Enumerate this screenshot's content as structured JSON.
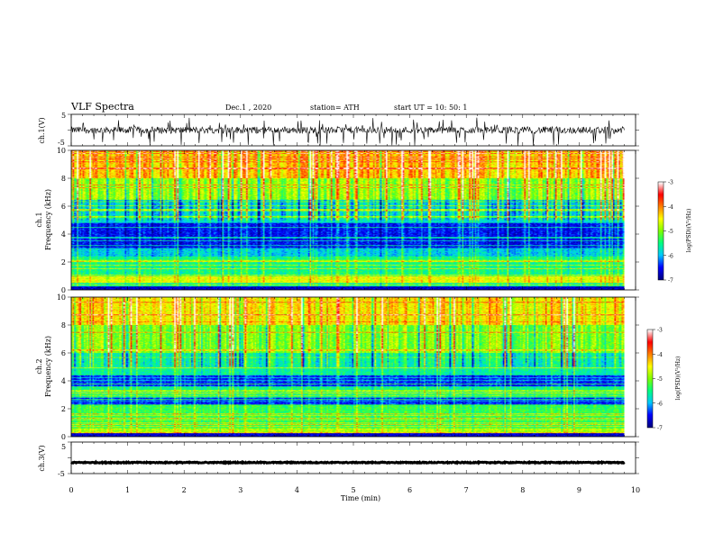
{
  "header": {
    "title": "VLF Spectra",
    "date": "Dec.1 , 2020",
    "station": "station= ATH",
    "start": "start UT = 10: 50: 1"
  },
  "chart_data": [
    {
      "type": "line",
      "name": "ch.1 waveform",
      "ylabel": "ch.1(V)",
      "ylim": [
        -5,
        5
      ],
      "yticks": [
        "5",
        "-5"
      ],
      "xlim": [
        0,
        10
      ],
      "baseline": 0,
      "trace_color": "#000000"
    },
    {
      "type": "heatmap",
      "name": "ch.1 spectrogram",
      "ylabel": "ch.1 Frequency (kHz)",
      "ylabel_lines": [
        "ch.1",
        "Frequency (kHz)"
      ],
      "ylim": [
        0,
        10
      ],
      "yticks": [
        "0",
        "2",
        "4",
        "6",
        "8",
        "10"
      ],
      "xlim": [
        0,
        10
      ],
      "data_end_min": 9.8,
      "colorbar": {
        "label": "log(PSD)(V²/Hz)",
        "range": [
          -7,
          -3
        ],
        "ticks": [
          "-3",
          "-4",
          "-5",
          "-6",
          "-7"
        ],
        "colors": [
          "#000080",
          "#0000ff",
          "#00c8ff",
          "#00ff80",
          "#80ff00",
          "#ffff00",
          "#ff8000",
          "#ff0000",
          "#ffffff"
        ]
      },
      "bands": [
        {
          "f_range": [
            0,
            0.5
          ],
          "level": -5.6
        },
        {
          "f_range": [
            0.5,
            1.0
          ],
          "level": -4.6
        },
        {
          "f_range": [
            1.0,
            2.4
          ],
          "level": -5.5
        },
        {
          "f_range": [
            2.4,
            3.0
          ],
          "level": -5.9
        },
        {
          "f_range": [
            3.0,
            4.8
          ],
          "level": -6.5
        },
        {
          "f_range": [
            4.8,
            6.5
          ],
          "level": -5.8
        },
        {
          "f_range": [
            6.5,
            8.0
          ],
          "level": -4.9
        },
        {
          "f_range": [
            8.0,
            10.0
          ],
          "level": -4.2
        }
      ]
    },
    {
      "type": "heatmap",
      "name": "ch.2 spectrogram",
      "ylabel": "ch.2 Frequency (kHz)",
      "ylabel_lines": [
        "ch.2",
        "Frequency (kHz)"
      ],
      "ylim": [
        0,
        10
      ],
      "yticks": [
        "0",
        "2",
        "4",
        "6",
        "8",
        "10"
      ],
      "xlim": [
        0,
        10
      ],
      "data_end_min": 9.8,
      "colorbar": {
        "label": "log(PSD)(V²/Hz)",
        "range": [
          -7,
          -3
        ],
        "ticks": [
          "-3",
          "-4",
          "-5",
          "-6",
          "-7"
        ],
        "colors": [
          "#000080",
          "#0000ff",
          "#00c8ff",
          "#00ff80",
          "#80ff00",
          "#ffff00",
          "#ff8000",
          "#ff0000",
          "#ffffff"
        ]
      },
      "bands": [
        {
          "f_range": [
            0,
            0.6
          ],
          "level": -4.8
        },
        {
          "f_range": [
            0.6,
            2.3
          ],
          "level": -5.3
        },
        {
          "f_range": [
            2.3,
            2.8
          ],
          "level": -6.4
        },
        {
          "f_range": [
            2.8,
            3.6
          ],
          "level": -5.5
        },
        {
          "f_range": [
            3.6,
            4.4
          ],
          "level": -6.4
        },
        {
          "f_range": [
            4.4,
            6.0
          ],
          "level": -5.6
        },
        {
          "f_range": [
            6.0,
            8.0
          ],
          "level": -5.0
        },
        {
          "f_range": [
            8.0,
            10.0
          ],
          "level": -4.4
        }
      ]
    },
    {
      "type": "line",
      "name": "ch.3 waveform",
      "ylabel": "ch.3(V)",
      "ylim": [
        -5,
        5
      ],
      "yticks": [
        "5",
        "-5"
      ],
      "xlim": [
        0,
        10
      ],
      "baseline": -1.5,
      "trace_color": "#000000"
    }
  ],
  "xaxis": {
    "label": "Time (min)",
    "ticks": [
      "0",
      "1",
      "2",
      "3",
      "4",
      "5",
      "6",
      "7",
      "8",
      "9",
      "10"
    ],
    "range": [
      0,
      10
    ]
  }
}
